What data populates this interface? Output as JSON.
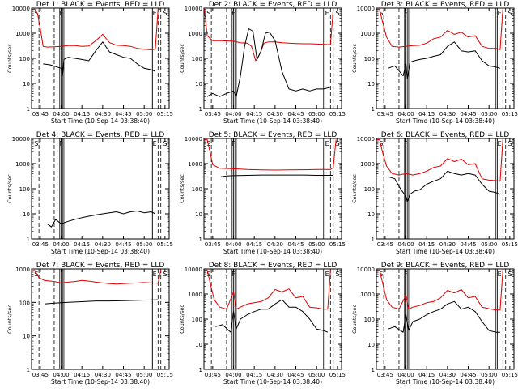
{
  "figure": {
    "x_axis_label": "Start Time (10-Sep-14 03:38:40)",
    "y_axis_label": "Counts/sec",
    "x_ticks": [
      "03:45",
      "04:00",
      "04:15",
      "04:30",
      "04:45",
      "05:00",
      "05:15"
    ],
    "y_ticks": [
      "1",
      "10",
      "100",
      "1000",
      "10000"
    ],
    "colors": {
      "events": "#000000",
      "lld": "#e00000",
      "axes": "#000000"
    }
  },
  "chart_data": [
    {
      "type": "line",
      "title": "Det 1: BLACK = Events, RED = LLD",
      "ylim": [
        1,
        10000
      ],
      "log_y": true,
      "xlim": [
        "03:38:40",
        "05:18:00"
      ],
      "segment_markers": [
        "S",
        "F",
        "E",
        "S"
      ],
      "series": [
        {
          "name": "Events",
          "color": "#000000",
          "x": [
            "03:47",
            "03:52",
            "04:00",
            "04:01",
            "04:02",
            "04:05",
            "04:10",
            "04:15",
            "04:20",
            "04:25",
            "04:30",
            "04:35",
            "04:40",
            "04:45",
            "04:50",
            "04:55",
            "05:00",
            "05:05",
            "05:08"
          ],
          "y": [
            60,
            55,
            40,
            20,
            90,
            110,
            100,
            90,
            80,
            200,
            450,
            180,
            140,
            110,
            100,
            60,
            40,
            35,
            30
          ]
        },
        {
          "name": "LLD",
          "color": "#e00000",
          "x": [
            "03:39",
            "03:41",
            "03:43",
            "03:45",
            "03:47",
            "03:50",
            "03:55",
            "04:00",
            "04:05",
            "04:10",
            "04:15",
            "04:20",
            "04:25",
            "04:30",
            "04:35",
            "04:40",
            "04:45",
            "04:50",
            "04:55",
            "05:00",
            "05:05",
            "05:08",
            "05:10",
            "05:12"
          ],
          "y": [
            9000,
            9000,
            6000,
            1500,
            300,
            280,
            290,
            300,
            320,
            320,
            300,
            310,
            500,
            900,
            420,
            330,
            320,
            300,
            250,
            230,
            220,
            230,
            9000,
            9000
          ]
        }
      ]
    },
    {
      "type": "line",
      "title": "Det 2: BLACK = Events, RED = LLD",
      "ylim": [
        1,
        10000
      ],
      "log_y": true,
      "xlim": [
        "03:38:40",
        "05:18:00"
      ],
      "segment_markers": [
        "S",
        "F",
        "E",
        "S"
      ],
      "series": [
        {
          "name": "Events",
          "color": "#000000",
          "x": [
            "03:41",
            "03:45",
            "03:50",
            "03:55",
            "04:00",
            "04:02",
            "04:05",
            "04:08",
            "04:11",
            "04:14",
            "04:17",
            "04:20",
            "04:23",
            "04:26",
            "04:30",
            "04:35",
            "04:40",
            "04:45",
            "04:50",
            "04:55",
            "05:00",
            "05:05",
            "05:10"
          ],
          "y": [
            3,
            4,
            3,
            4,
            5,
            3,
            20,
            300,
            1500,
            1200,
            90,
            200,
            1000,
            1100,
            500,
            30,
            6,
            5,
            6,
            5,
            6,
            6,
            7
          ]
        },
        {
          "name": "LLD",
          "color": "#e00000",
          "x": [
            "03:39",
            "03:41",
            "03:45",
            "03:50",
            "04:00",
            "04:05",
            "04:10",
            "04:13",
            "04:16",
            "04:19",
            "04:22",
            "04:25",
            "04:30",
            "04:35",
            "04:40",
            "04:45",
            "04:50",
            "04:55",
            "05:00",
            "05:05",
            "05:10",
            "05:12"
          ],
          "y": [
            9000,
            800,
            500,
            500,
            480,
            420,
            400,
            300,
            80,
            150,
            400,
            450,
            450,
            420,
            400,
            390,
            380,
            380,
            370,
            360,
            350,
            9000
          ]
        }
      ]
    },
    {
      "type": "line",
      "title": "Det 3: BLACK = Events, RED = LLD",
      "ylim": [
        1,
        10000
      ],
      "log_y": true,
      "xlim": [
        "03:38:40",
        "05:18:00"
      ],
      "segment_markers": [
        "S",
        "F",
        "E",
        "S"
      ],
      "series": [
        {
          "name": "Events",
          "color": "#000000",
          "x": [
            "03:47",
            "03:52",
            "03:58",
            "04:00",
            "04:01",
            "04:03",
            "04:06",
            "04:10",
            "04:15",
            "04:20",
            "04:25",
            "04:30",
            "04:35",
            "04:40",
            "04:45",
            "04:50",
            "04:55",
            "05:00",
            "05:05",
            "05:08"
          ],
          "y": [
            40,
            50,
            20,
            60,
            15,
            70,
            80,
            90,
            100,
            120,
            140,
            300,
            450,
            200,
            180,
            200,
            80,
            50,
            45,
            40
          ]
        },
        {
          "name": "LLD",
          "color": "#e00000",
          "x": [
            "03:39",
            "03:41",
            "03:43",
            "03:46",
            "03:50",
            "03:55",
            "04:00",
            "04:05",
            "04:10",
            "04:15",
            "04:20",
            "04:25",
            "04:30",
            "04:35",
            "04:40",
            "04:45",
            "04:50",
            "04:55",
            "05:00",
            "05:05",
            "05:08",
            "05:10"
          ],
          "y": [
            9000,
            9000,
            3000,
            700,
            300,
            280,
            300,
            320,
            330,
            400,
            600,
            700,
            1300,
            900,
            1100,
            700,
            800,
            300,
            250,
            250,
            220,
            9000
          ]
        }
      ]
    },
    {
      "type": "line",
      "title": "Det 4: BLACK = Events, RED = LLD",
      "ylim": [
        1,
        10000
      ],
      "log_y": true,
      "xlim": [
        "03:38:40",
        "05:18:00"
      ],
      "segment_markers": [
        "S",
        "F",
        "E",
        "S"
      ],
      "series": [
        {
          "name": "Events",
          "color": "#000000",
          "x": [
            "03:50",
            "03:53",
            "03:56",
            "04:00",
            "04:05",
            "04:10",
            "04:15",
            "04:20",
            "04:25",
            "04:30",
            "04:35",
            "04:40",
            "04:45",
            "04:50",
            "04:55",
            "05:00",
            "05:05",
            "05:08"
          ],
          "y": [
            4,
            3,
            6,
            4,
            5,
            6,
            7,
            8,
            9,
            10,
            11,
            12,
            10,
            12,
            13,
            11,
            12,
            10
          ]
        }
      ]
    },
    {
      "type": "line",
      "title": "Det 5: BLACK = Events, RED = LLD",
      "ylim": [
        1,
        10000
      ],
      "log_y": true,
      "xlim": [
        "03:38:40",
        "05:18:00"
      ],
      "segment_markers": [
        "S",
        "F",
        "E",
        "S"
      ],
      "series": [
        {
          "name": "Events",
          "color": "#000000",
          "x": [
            "03:51",
            "03:55",
            "04:00",
            "04:10",
            "04:20",
            "04:30",
            "04:40",
            "04:50",
            "05:00",
            "05:10",
            "05:12"
          ],
          "y": [
            300,
            320,
            330,
            340,
            350,
            350,
            350,
            350,
            340,
            340,
            340
          ]
        },
        {
          "name": "LLD",
          "color": "#e00000",
          "x": [
            "03:39",
            "03:41",
            "03:43",
            "03:45",
            "03:50",
            "04:00",
            "04:10",
            "04:20",
            "04:30",
            "04:40",
            "04:50",
            "05:00",
            "05:10",
            "05:12",
            "05:14"
          ],
          "y": [
            9000,
            9000,
            3000,
            900,
            650,
            620,
            580,
            560,
            550,
            560,
            570,
            580,
            580,
            700,
            9000
          ]
        }
      ]
    },
    {
      "type": "line",
      "title": "Det 6: BLACK = Events, RED = LLD",
      "ylim": [
        1,
        10000
      ],
      "log_y": true,
      "xlim": [
        "03:38:40",
        "05:18:00"
      ],
      "segment_markers": [
        "S",
        "F",
        "E",
        "S"
      ],
      "series": [
        {
          "name": "Events",
          "color": "#000000",
          "x": [
            "03:47",
            "03:52",
            "03:56",
            "04:00",
            "04:01",
            "04:03",
            "04:06",
            "04:10",
            "04:15",
            "04:20",
            "04:25",
            "04:30",
            "04:35",
            "04:40",
            "04:45",
            "04:50",
            "04:55",
            "05:00",
            "05:05",
            "05:08"
          ],
          "y": [
            300,
            250,
            100,
            50,
            30,
            60,
            80,
            90,
            150,
            200,
            250,
            500,
            400,
            350,
            400,
            350,
            150,
            80,
            70,
            60
          ]
        },
        {
          "name": "LLD",
          "color": "#e00000",
          "x": [
            "03:39",
            "03:41",
            "03:43",
            "03:46",
            "03:50",
            "03:55",
            "04:00",
            "04:05",
            "04:10",
            "04:15",
            "04:20",
            "04:25",
            "04:30",
            "04:35",
            "04:40",
            "04:45",
            "04:50",
            "04:55",
            "05:00",
            "05:05",
            "05:08",
            "05:10"
          ],
          "y": [
            9000,
            9000,
            3000,
            800,
            400,
            350,
            400,
            350,
            400,
            500,
            700,
            800,
            1600,
            1200,
            1500,
            900,
            1000,
            250,
            220,
            210,
            200,
            9000
          ]
        }
      ]
    },
    {
      "type": "line",
      "title": "Det 7: BLACK = Events, RED = LLD",
      "ylim": [
        1,
        1000
      ],
      "log_y": true,
      "xlim": [
        "03:38:40",
        "05:18:00"
      ],
      "segment_markers": [
        "S",
        "E",
        "S"
      ],
      "series": [
        {
          "name": "Events",
          "color": "#000000",
          "x": [
            "03:48",
            "03:55",
            "04:05",
            "04:15",
            "04:25",
            "04:35",
            "04:45",
            "04:55",
            "05:05",
            "05:10"
          ],
          "y": [
            90,
            95,
            100,
            105,
            110,
            110,
            112,
            115,
            118,
            120
          ]
        },
        {
          "name": "LLD",
          "color": "#e00000",
          "x": [
            "03:39",
            "03:41",
            "03:44",
            "03:48",
            "03:55",
            "04:00",
            "04:05",
            "04:10",
            "04:15",
            "04:20",
            "04:25",
            "04:30",
            "04:35",
            "04:40",
            "04:45",
            "04:50",
            "04:55",
            "05:00",
            "05:05",
            "05:10",
            "05:12"
          ],
          "y": [
            900,
            900,
            550,
            450,
            420,
            380,
            400,
            420,
            450,
            430,
            400,
            380,
            360,
            350,
            360,
            370,
            380,
            390,
            380,
            370,
            900
          ]
        }
      ]
    },
    {
      "type": "line",
      "title": "Det 8: BLACK = Events, RED = LLD",
      "ylim": [
        1,
        10000
      ],
      "log_y": true,
      "xlim": [
        "03:38:40",
        "05:18:00"
      ],
      "segment_markers": [
        "S",
        "F",
        "E",
        "S"
      ],
      "series": [
        {
          "name": "Events",
          "color": "#000000",
          "x": [
            "03:47",
            "03:52",
            "03:58",
            "04:00",
            "04:02",
            "04:05",
            "04:10",
            "04:15",
            "04:20",
            "04:25",
            "04:30",
            "04:35",
            "04:40",
            "04:45",
            "04:50",
            "04:55",
            "05:00",
            "05:05",
            "05:08"
          ],
          "y": [
            50,
            60,
            30,
            200,
            40,
            100,
            150,
            200,
            250,
            250,
            400,
            600,
            300,
            300,
            200,
            100,
            40,
            35,
            30
          ]
        },
        {
          "name": "LLD",
          "color": "#e00000",
          "x": [
            "03:39",
            "03:41",
            "03:43",
            "03:46",
            "03:50",
            "03:55",
            "04:00",
            "04:02",
            "04:05",
            "04:10",
            "04:15",
            "04:20",
            "04:25",
            "04:30",
            "04:35",
            "04:40",
            "04:45",
            "04:50",
            "04:55",
            "05:00",
            "05:05",
            "05:08",
            "05:10"
          ],
          "y": [
            9000,
            9000,
            3000,
            600,
            300,
            250,
            1200,
            250,
            300,
            400,
            450,
            500,
            700,
            1500,
            1200,
            1600,
            700,
            800,
            300,
            280,
            250,
            250,
            9000
          ]
        }
      ]
    },
    {
      "type": "line",
      "title": "Det 9: BLACK = Events, RED = LLD",
      "ylim": [
        1,
        10000
      ],
      "log_y": true,
      "xlim": [
        "03:38:40",
        "05:18:00"
      ],
      "segment_markers": [
        "S",
        "F",
        "E",
        "S"
      ],
      "series": [
        {
          "name": "Events",
          "color": "#000000",
          "x": [
            "03:47",
            "03:52",
            "03:58",
            "04:00",
            "04:02",
            "04:05",
            "04:10",
            "04:15",
            "04:20",
            "04:25",
            "04:30",
            "04:35",
            "04:40",
            "04:45",
            "04:50",
            "04:55",
            "05:00",
            "05:05",
            "05:08"
          ],
          "y": [
            40,
            50,
            30,
            150,
            35,
            80,
            100,
            150,
            200,
            250,
            400,
            500,
            250,
            300,
            200,
            80,
            35,
            30,
            30
          ]
        },
        {
          "name": "LLD",
          "color": "#e00000",
          "x": [
            "03:39",
            "03:41",
            "03:43",
            "03:46",
            "03:50",
            "03:55",
            "04:00",
            "04:02",
            "04:05",
            "04:10",
            "04:15",
            "04:20",
            "04:25",
            "04:30",
            "04:35",
            "04:40",
            "04:45",
            "04:50",
            "04:55",
            "05:00",
            "05:05",
            "05:08",
            "05:10"
          ],
          "y": [
            9000,
            9000,
            3000,
            600,
            300,
            250,
            900,
            250,
            300,
            350,
            450,
            500,
            700,
            1400,
            1100,
            1500,
            700,
            800,
            300,
            260,
            230,
            230,
            9000
          ]
        }
      ]
    }
  ]
}
